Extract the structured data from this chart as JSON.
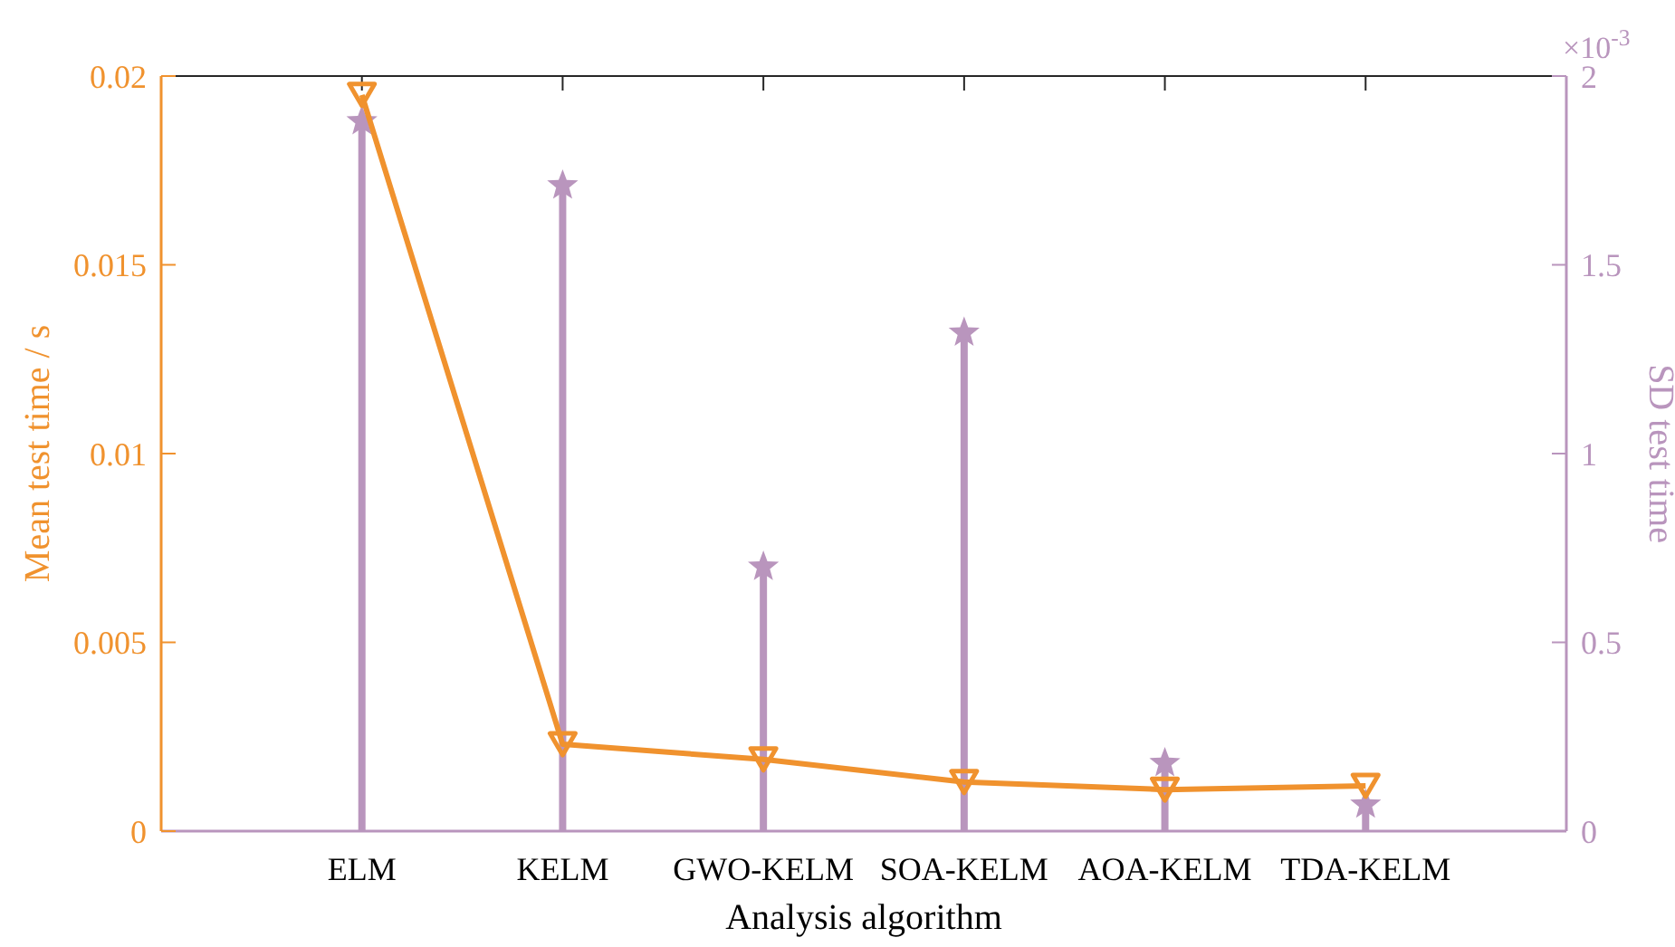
{
  "chart_data": {
    "type": "line",
    "categories": [
      "ELM",
      "KELM",
      "GWO-KELM",
      "SOA-KELM",
      "AOA-KELM",
      "TDA-KELM"
    ],
    "xlabel": "Analysis algorithm",
    "ylabel": "Mean test time / s",
    "y2label": "SD test time",
    "ylim": [
      0,
      0.02
    ],
    "yticks": [
      0,
      0.005,
      0.01,
      0.015,
      0.02
    ],
    "y2lim": [
      0,
      2
    ],
    "y2ticks": [
      0,
      0.5,
      1,
      1.5,
      2
    ],
    "annotations": [
      "×10$^{-3}$"
    ],
    "series": [
      {
        "type": "lollipop",
        "axis": "y2",
        "color": "#b995bd",
        "marker": "star",
        "values": [
          1.88,
          1.71,
          0.7,
          1.32,
          0.18,
          0.07
        ]
      },
      {
        "color": "#f0922e",
        "marker": "triangle",
        "line_style": "solid",
        "values": [
          0.0195,
          0.0023,
          0.0019,
          0.0013,
          0.0011,
          0.0012
        ]
      }
    ]
  }
}
